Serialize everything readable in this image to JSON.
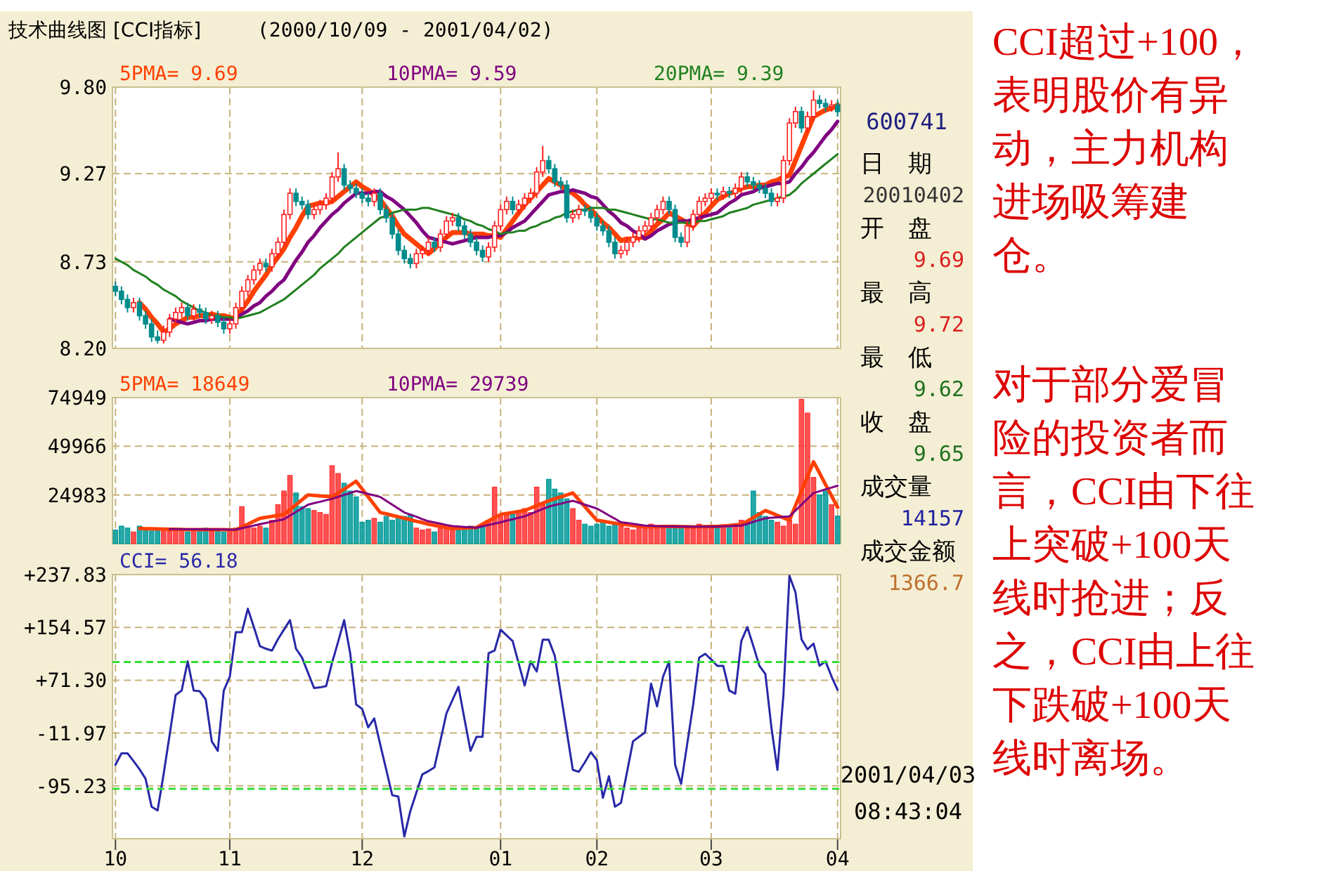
{
  "chart_data": [
    {
      "type": "candlestick",
      "title": "技术曲线图 [CCI指标]",
      "subtitle": "(2000/10/09 - 2001/04/02)",
      "categories": [
        "10",
        null,
        null,
        null,
        null,
        null,
        null,
        null,
        null,
        null,
        null,
        null,
        null,
        null,
        null,
        null,
        null,
        null,
        null,
        "11",
        null,
        null,
        null,
        null,
        null,
        null,
        null,
        null,
        null,
        null,
        null,
        null,
        null,
        null,
        null,
        null,
        null,
        null,
        null,
        null,
        null,
        "12",
        null,
        null,
        null,
        null,
        null,
        null,
        null,
        null,
        null,
        null,
        null,
        null,
        null,
        null,
        null,
        null,
        null,
        null,
        null,
        null,
        null,
        null,
        "01",
        null,
        null,
        null,
        null,
        null,
        null,
        null,
        null,
        null,
        null,
        null,
        null,
        null,
        null,
        null,
        "02",
        null,
        null,
        null,
        null,
        null,
        null,
        null,
        null,
        null,
        null,
        null,
        null,
        null,
        null,
        null,
        null,
        null,
        null,
        "03",
        null,
        null,
        null,
        null,
        null,
        null,
        null,
        null,
        null,
        null,
        null,
        null,
        null,
        null,
        null,
        null,
        null,
        null,
        null,
        null,
        "04"
      ],
      "ohlc": [
        [
          8.58,
          8.61,
          8.52,
          8.55
        ],
        [
          8.55,
          8.58,
          8.47,
          8.5
        ],
        [
          8.5,
          8.53,
          8.42,
          8.45
        ],
        [
          8.45,
          8.51,
          8.42,
          8.48
        ],
        [
          8.48,
          8.51,
          8.37,
          8.4
        ],
        [
          8.4,
          8.43,
          8.32,
          8.35
        ],
        [
          8.35,
          8.38,
          8.24,
          8.27
        ],
        [
          8.27,
          8.31,
          8.23,
          8.25
        ],
        [
          8.25,
          8.34,
          8.23,
          8.3
        ],
        [
          8.3,
          8.41,
          8.27,
          8.38
        ],
        [
          8.38,
          8.45,
          8.35,
          8.42
        ],
        [
          8.42,
          8.48,
          8.39,
          8.45
        ],
        [
          8.45,
          8.48,
          8.37,
          8.4
        ],
        [
          8.4,
          8.47,
          8.37,
          8.44
        ],
        [
          8.44,
          8.47,
          8.39,
          8.42
        ],
        [
          8.42,
          8.45,
          8.35,
          8.38
        ],
        [
          8.38,
          8.43,
          8.35,
          8.4
        ],
        [
          8.4,
          8.43,
          8.33,
          8.36
        ],
        [
          8.36,
          8.39,
          8.29,
          8.32
        ],
        [
          8.32,
          8.38,
          8.29,
          8.35
        ],
        [
          8.35,
          8.48,
          8.32,
          8.45
        ],
        [
          8.45,
          8.58,
          8.42,
          8.55
        ],
        [
          8.55,
          8.65,
          8.52,
          8.62
        ],
        [
          8.62,
          8.71,
          8.59,
          8.68
        ],
        [
          8.68,
          8.75,
          8.65,
          8.72
        ],
        [
          8.72,
          8.75,
          8.67,
          8.7
        ],
        [
          8.7,
          8.81,
          8.67,
          8.78
        ],
        [
          8.78,
          8.88,
          8.75,
          8.85
        ],
        [
          8.85,
          9.05,
          8.82,
          9.02
        ],
        [
          9.02,
          9.18,
          8.99,
          9.15
        ],
        [
          9.15,
          9.18,
          9.07,
          9.1
        ],
        [
          9.1,
          9.13,
          9.05,
          9.08
        ],
        [
          9.08,
          9.11,
          8.99,
          9.02
        ],
        [
          9.02,
          9.08,
          8.99,
          9.05
        ],
        [
          9.05,
          9.11,
          9.02,
          9.08
        ],
        [
          9.08,
          9.15,
          9.05,
          9.12
        ],
        [
          9.12,
          9.28,
          9.09,
          9.25
        ],
        [
          9.25,
          9.4,
          9.22,
          9.3
        ],
        [
          9.3,
          9.33,
          9.17,
          9.2
        ],
        [
          9.2,
          9.23,
          9.15,
          9.18
        ],
        [
          9.18,
          9.21,
          9.12,
          9.15
        ],
        [
          9.15,
          9.18,
          9.09,
          9.12
        ],
        [
          9.12,
          9.15,
          9.07,
          9.1
        ],
        [
          9.1,
          9.18,
          9.07,
          9.15
        ],
        [
          9.15,
          9.18,
          9.02,
          9.05
        ],
        [
          9.05,
          9.08,
          8.97,
          9.0
        ],
        [
          9.0,
          9.03,
          8.87,
          8.9
        ],
        [
          8.9,
          8.93,
          8.77,
          8.8
        ],
        [
          8.8,
          8.83,
          8.72,
          8.75
        ],
        [
          8.75,
          8.78,
          8.69,
          8.72
        ],
        [
          8.72,
          8.81,
          8.69,
          8.78
        ],
        [
          8.78,
          8.83,
          8.75,
          8.8
        ],
        [
          8.8,
          8.88,
          8.77,
          8.85
        ],
        [
          8.85,
          8.88,
          8.79,
          8.82
        ],
        [
          8.82,
          8.93,
          8.79,
          8.9
        ],
        [
          8.9,
          9.01,
          8.87,
          8.98
        ],
        [
          8.98,
          9.03,
          8.95,
          9.0
        ],
        [
          9.0,
          9.03,
          8.92,
          8.95
        ],
        [
          8.95,
          8.98,
          8.87,
          8.9
        ],
        [
          8.9,
          8.93,
          8.82,
          8.85
        ],
        [
          8.85,
          8.88,
          8.77,
          8.8
        ],
        [
          8.8,
          8.83,
          8.73,
          8.76
        ],
        [
          8.76,
          8.85,
          8.73,
          8.82
        ],
        [
          8.82,
          8.98,
          8.79,
          8.95
        ],
        [
          8.95,
          9.08,
          8.92,
          9.05
        ],
        [
          9.05,
          9.13,
          9.02,
          9.1
        ],
        [
          9.1,
          9.13,
          9.02,
          9.05
        ],
        [
          9.05,
          9.11,
          9.02,
          9.08
        ],
        [
          9.08,
          9.15,
          9.05,
          9.12
        ],
        [
          9.12,
          9.18,
          9.09,
          9.15
        ],
        [
          9.15,
          9.31,
          9.12,
          9.28
        ],
        [
          9.28,
          9.44,
          9.25,
          9.35
        ],
        [
          9.35,
          9.38,
          9.27,
          9.3
        ],
        [
          9.3,
          9.33,
          9.19,
          9.22
        ],
        [
          9.22,
          9.25,
          9.17,
          9.2
        ],
        [
          9.2,
          9.23,
          8.97,
          9.0
        ],
        [
          9.0,
          9.05,
          8.97,
          9.02
        ],
        [
          9.02,
          9.08,
          8.99,
          9.05
        ],
        [
          9.05,
          9.08,
          9.01,
          9.04
        ],
        [
          9.04,
          9.07,
          8.97,
          9.0
        ],
        [
          9.0,
          9.03,
          8.92,
          8.95
        ],
        [
          8.95,
          8.98,
          8.89,
          8.92
        ],
        [
          8.92,
          8.95,
          8.82,
          8.85
        ],
        [
          8.85,
          8.88,
          8.75,
          8.78
        ],
        [
          8.78,
          8.83,
          8.75,
          8.8
        ],
        [
          8.8,
          8.88,
          8.77,
          8.85
        ],
        [
          8.85,
          8.91,
          8.82,
          8.88
        ],
        [
          8.88,
          8.95,
          8.85,
          8.92
        ],
        [
          8.92,
          8.98,
          8.89,
          8.95
        ],
        [
          8.95,
          9.03,
          8.92,
          9.0
        ],
        [
          9.0,
          9.08,
          8.97,
          9.05
        ],
        [
          9.05,
          9.13,
          9.02,
          9.1
        ],
        [
          9.1,
          9.13,
          9.02,
          9.05
        ],
        [
          9.05,
          9.08,
          8.85,
          8.88
        ],
        [
          8.88,
          8.91,
          8.82,
          8.85
        ],
        [
          8.85,
          8.98,
          8.82,
          8.95
        ],
        [
          8.95,
          9.05,
          8.92,
          9.02
        ],
        [
          9.02,
          9.13,
          8.99,
          9.1
        ],
        [
          9.1,
          9.15,
          9.07,
          9.12
        ],
        [
          9.12,
          9.18,
          9.09,
          9.15
        ],
        [
          9.15,
          9.18,
          9.11,
          9.14
        ],
        [
          9.14,
          9.19,
          9.11,
          9.16
        ],
        [
          9.16,
          9.19,
          9.12,
          9.15
        ],
        [
          9.15,
          9.21,
          9.12,
          9.18
        ],
        [
          9.18,
          9.28,
          9.15,
          9.25
        ],
        [
          9.25,
          9.28,
          9.19,
          9.22
        ],
        [
          9.22,
          9.25,
          9.17,
          9.2
        ],
        [
          9.2,
          9.23,
          9.15,
          9.18
        ],
        [
          9.18,
          9.21,
          9.12,
          9.15
        ],
        [
          9.15,
          9.18,
          9.07,
          9.1
        ],
        [
          9.1,
          9.15,
          9.07,
          9.12
        ],
        [
          9.12,
          9.38,
          9.09,
          9.35
        ],
        [
          9.35,
          9.61,
          9.32,
          9.58
        ],
        [
          9.58,
          9.68,
          9.55,
          9.65
        ],
        [
          9.65,
          9.68,
          9.52,
          9.55
        ],
        [
          9.55,
          9.65,
          9.52,
          9.62
        ],
        [
          9.62,
          9.78,
          9.59,
          9.72
        ],
        [
          9.72,
          9.75,
          9.67,
          9.7
        ],
        [
          9.7,
          9.73,
          9.65,
          9.68
        ],
        [
          9.68,
          9.72,
          9.65,
          9.69
        ],
        [
          9.69,
          9.72,
          9.62,
          9.65
        ]
      ],
      "series": [
        {
          "type": "line",
          "name": "5PMA= 9.69",
          "color": "#ff4000",
          "values": [
            null,
            null,
            null,
            null,
            8.48,
            8.44,
            8.39,
            8.35,
            8.3,
            8.32,
            8.35,
            8.37,
            8.39,
            8.39,
            8.4,
            8.4,
            8.41,
            8.4,
            8.4,
            8.39,
            8.38,
            8.44,
            8.49,
            8.55,
            8.6,
            8.65,
            8.71,
            8.76,
            8.81,
            8.88,
            8.94,
            9.01,
            9.07,
            9.08,
            9.09,
            9.09,
            9.1,
            9.13,
            9.16,
            9.19,
            9.22,
            9.19,
            9.17,
            9.14,
            9.11,
            9.06,
            9.01,
            8.95,
            8.9,
            8.87,
            8.84,
            8.81,
            8.78,
            8.81,
            8.85,
            8.88,
            8.91,
            8.91,
            8.91,
            8.9,
            8.9,
            8.9,
            8.89,
            8.89,
            8.88,
            8.93,
            8.98,
            9.03,
            9.08,
            9.12,
            9.16,
            9.2,
            9.24,
            9.22,
            9.2,
            9.17,
            9.15,
            9.12,
            9.08,
            9.05,
            9.01,
            8.97,
            8.94,
            8.9,
            8.86,
            8.87,
            8.87,
            8.88,
            8.88,
            8.92,
            8.96,
            8.99,
            9.03,
            9.01,
            8.99,
            8.97,
            8.95,
            8.99,
            9.03,
            9.07,
            9.11,
            9.13,
            9.15,
            9.16,
            9.18,
            9.19,
            9.19,
            9.2,
            9.2,
            9.22,
            9.23,
            9.25,
            9.26,
            9.35,
            9.44,
            9.53,
            9.62,
            9.64,
            9.66,
            9.67,
            9.69
          ]
        },
        {
          "type": "line",
          "name": "10PMA= 9.59",
          "color": "#800080",
          "values": [
            null,
            null,
            null,
            null,
            null,
            null,
            null,
            null,
            null,
            8.38,
            8.37,
            8.36,
            8.35,
            8.36,
            8.37,
            8.37,
            8.38,
            8.38,
            8.38,
            8.38,
            8.38,
            8.41,
            8.43,
            8.46,
            8.48,
            8.52,
            8.55,
            8.59,
            8.62,
            8.68,
            8.74,
            8.79,
            8.85,
            8.89,
            8.94,
            8.98,
            9.02,
            9.05,
            9.09,
            9.12,
            9.15,
            9.15,
            9.15,
            9.16,
            9.16,
            9.13,
            9.11,
            9.08,
            9.05,
            9.01,
            8.97,
            8.92,
            8.88,
            8.87,
            8.86,
            8.85,
            8.84,
            8.85,
            8.86,
            8.87,
            8.88,
            8.88,
            8.88,
            8.89,
            8.89,
            8.91,
            8.94,
            8.96,
            8.98,
            9.02,
            9.06,
            9.1,
            9.14,
            9.15,
            9.16,
            9.16,
            9.17,
            9.16,
            9.15,
            9.13,
            9.12,
            9.08,
            9.04,
            9.01,
            8.97,
            8.95,
            8.92,
            8.9,
            8.87,
            8.89,
            8.92,
            8.94,
            8.96,
            8.97,
            8.98,
            8.98,
            8.99,
            9.0,
            9.01,
            9.02,
            9.03,
            9.06,
            9.09,
            9.11,
            9.14,
            9.15,
            9.16,
            9.18,
            9.19,
            9.2,
            9.21,
            9.21,
            9.22,
            9.27,
            9.31,
            9.36,
            9.4,
            9.45,
            9.5,
            9.54,
            9.59
          ]
        },
        {
          "type": "line",
          "name": "20PMA= 9.39",
          "color": "#208020",
          "values": [
            8.75,
            8.73,
            8.71,
            8.68,
            8.66,
            8.64,
            8.61,
            8.59,
            8.56,
            8.54,
            8.52,
            8.49,
            8.47,
            8.45,
            8.43,
            8.42,
            8.4,
            8.4,
            8.39,
            8.39,
            8.38,
            8.39,
            8.4,
            8.41,
            8.42,
            8.44,
            8.46,
            8.48,
            8.5,
            8.53,
            8.56,
            8.59,
            8.62,
            8.65,
            8.69,
            8.72,
            8.75,
            8.78,
            8.82,
            8.85,
            8.88,
            8.91,
            8.94,
            8.97,
            9.0,
            9.01,
            9.03,
            9.04,
            9.05,
            9.05,
            9.05,
            9.06,
            9.06,
            9.05,
            9.04,
            9.03,
            9.02,
            9.01,
            8.99,
            8.98,
            8.96,
            8.95,
            8.93,
            8.92,
            8.9,
            8.91,
            8.91,
            8.92,
            8.92,
            8.94,
            8.95,
            8.97,
            8.98,
            9.0,
            9.01,
            9.03,
            9.04,
            9.05,
            9.05,
            9.06,
            9.06,
            9.06,
            9.05,
            9.05,
            9.04,
            9.03,
            9.02,
            9.01,
            9.0,
            8.99,
            8.99,
            8.98,
            8.97,
            8.97,
            8.97,
            8.97,
            8.97,
            8.98,
            8.98,
            8.99,
            9.0,
            9.01,
            9.03,
            9.04,
            9.05,
            9.06,
            9.08,
            9.09,
            9.1,
            9.11,
            9.12,
            9.13,
            9.14,
            9.17,
            9.21,
            9.24,
            9.27,
            9.3,
            9.33,
            9.36,
            9.39
          ]
        }
      ],
      "ylim": [
        8.2,
        9.8
      ],
      "yticks": [
        {
          "value": 8.2,
          "label": "8.20"
        },
        {
          "value": 8.73,
          "label": "8.73"
        },
        {
          "value": 9.27,
          "label": "9.27"
        },
        {
          "value": 9.8,
          "label": "9.80"
        }
      ],
      "tick_labels": "y",
      "grid": true,
      "legend": "top"
    },
    {
      "type": "bar",
      "categories": [
        "10",
        null,
        null,
        null,
        null,
        null,
        null,
        null,
        null,
        null,
        null,
        null,
        null,
        null,
        null,
        null,
        null,
        null,
        null,
        "11",
        null,
        null,
        null,
        null,
        null,
        null,
        null,
        null,
        null,
        null,
        null,
        null,
        null,
        null,
        null,
        null,
        null,
        null,
        null,
        null,
        null,
        "12",
        null,
        null,
        null,
        null,
        null,
        null,
        null,
        null,
        null,
        null,
        null,
        null,
        null,
        null,
        null,
        null,
        null,
        null,
        null,
        null,
        null,
        null,
        "01",
        null,
        null,
        null,
        null,
        null,
        null,
        null,
        null,
        null,
        null,
        null,
        null,
        null,
        null,
        null,
        "02",
        null,
        null,
        null,
        null,
        null,
        null,
        null,
        null,
        null,
        null,
        null,
        null,
        null,
        null,
        null,
        null,
        null,
        null,
        "03",
        null,
        null,
        null,
        null,
        null,
        null,
        null,
        null,
        null,
        null,
        null,
        null,
        null,
        null,
        null,
        null,
        null,
        null,
        null,
        null,
        "04"
      ],
      "values": [
        7000,
        9000,
        8000,
        6000,
        9000,
        7000,
        6500,
        8000,
        7000,
        6500,
        7500,
        7000,
        6000,
        7500,
        7000,
        8000,
        6500,
        7000,
        6000,
        7000,
        8000,
        19000,
        9000,
        8000,
        9000,
        8000,
        12000,
        20000,
        27000,
        35000,
        26000,
        19000,
        18000,
        17000,
        16000,
        15000,
        40000,
        36000,
        31000,
        27000,
        24000,
        11000,
        12000,
        13000,
        11000,
        14000,
        12000,
        13000,
        14000,
        15000,
        8000,
        7000,
        7500,
        6000,
        8000,
        9000,
        8000,
        7000,
        8000,
        9000,
        8500,
        9000,
        12000,
        29000,
        14000,
        16000,
        15000,
        17000,
        18000,
        16000,
        29000,
        20000,
        33000,
        28000,
        26000,
        23000,
        18000,
        12000,
        10000,
        9000,
        10000,
        11000,
        9000,
        10000,
        9000,
        8000,
        7000,
        9000,
        8000,
        10000,
        9000,
        8000,
        9000,
        8000,
        9000,
        8000,
        9000,
        10000,
        9000,
        8000,
        9000,
        8000,
        9000,
        10000,
        12000,
        11000,
        27000,
        16000,
        14000,
        12000,
        11000,
        9000,
        12000,
        10000,
        74000,
        67000,
        34000,
        25000,
        27000,
        20000,
        14157
      ],
      "colors": [
        "#009999",
        "#009999",
        "#009999",
        "#ff3333",
        "#009999",
        "#009999",
        "#009999",
        "#009999",
        "#ff3333",
        "#ff3333",
        "#ff3333",
        "#ff3333",
        "#009999",
        "#ff3333",
        "#009999",
        "#009999",
        "#ff3333",
        "#009999",
        "#009999",
        "#ff3333",
        "#ff3333",
        "#ff3333",
        "#ff3333",
        "#ff3333",
        "#ff3333",
        "#009999",
        "#ff3333",
        "#ff3333",
        "#ff3333",
        "#ff3333",
        "#009999",
        "#009999",
        "#009999",
        "#ff3333",
        "#ff3333",
        "#ff3333",
        "#ff3333",
        "#ff3333",
        "#009999",
        "#009999",
        "#009999",
        "#009999",
        "#009999",
        "#ff3333",
        "#009999",
        "#009999",
        "#009999",
        "#009999",
        "#009999",
        "#009999",
        "#ff3333",
        "#ff3333",
        "#ff3333",
        "#009999",
        "#ff3333",
        "#ff3333",
        "#ff3333",
        "#009999",
        "#009999",
        "#009999",
        "#009999",
        "#009999",
        "#ff3333",
        "#ff3333",
        "#ff3333",
        "#ff3333",
        "#009999",
        "#ff3333",
        "#ff3333",
        "#ff3333",
        "#ff3333",
        "#ff3333",
        "#009999",
        "#009999",
        "#009999",
        "#009999",
        "#ff3333",
        "#ff3333",
        "#009999",
        "#009999",
        "#009999",
        "#009999",
        "#009999",
        "#009999",
        "#ff3333",
        "#ff3333",
        "#ff3333",
        "#ff3333",
        "#ff3333",
        "#ff3333",
        "#ff3333",
        "#ff3333",
        "#009999",
        "#009999",
        "#009999",
        "#ff3333",
        "#ff3333",
        "#ff3333",
        "#ff3333",
        "#ff3333",
        "#009999",
        "#ff3333",
        "#009999",
        "#ff3333",
        "#ff3333",
        "#009999",
        "#009999",
        "#009999",
        "#009999",
        "#009999",
        "#ff3333",
        "#ff3333",
        "#ff3333",
        "#ff3333",
        "#ff3333",
        "#ff3333",
        "#ff3333",
        "#009999",
        "#009999",
        "#ff3333",
        "#009999"
      ],
      "series": [
        {
          "type": "line",
          "name": "5PMA= 18649",
          "color": "#ff4000",
          "values": [
            null,
            null,
            null,
            null,
            7800,
            7700,
            7700,
            7600,
            7500,
            7400,
            7400,
            7300,
            7200,
            7200,
            7200,
            7200,
            7200,
            7200,
            7200,
            7100,
            7100,
            8600,
            10000,
            11500,
            13000,
            13500,
            14000,
            14500,
            15000,
            17500,
            20000,
            22500,
            25000,
            24800,
            24500,
            24300,
            24000,
            26000,
            28000,
            30000,
            32000,
            28000,
            24000,
            20000,
            16000,
            15300,
            14500,
            13800,
            13000,
            12300,
            11500,
            10800,
            10000,
            9400,
            8900,
            8300,
            7700,
            7900,
            8000,
            8200,
            8300,
            10000,
            11700,
            13300,
            15000,
            15500,
            16000,
            16500,
            17000,
            18300,
            19500,
            20800,
            22000,
            23000,
            24000,
            25000,
            26000,
            22500,
            19000,
            15500,
            12000,
            11500,
            11000,
            10500,
            10000,
            9700,
            9300,
            9000,
            8600,
            8700,
            8700,
            8800,
            8800,
            8800,
            8700,
            8700,
            8600,
            8700,
            8700,
            8800,
            8800,
            9100,
            9300,
            9600,
            9800,
            11600,
            13400,
            15200,
            17000,
            15800,
            14500,
            13300,
            12000,
            19500,
            27000,
            34500,
            42000,
            36200,
            30300,
            24500,
            18649
          ]
        },
        {
          "type": "line",
          "name": "10PMA= 29739",
          "color": "#800080",
          "values": [
            null,
            null,
            null,
            null,
            null,
            null,
            null,
            null,
            null,
            7500,
            7500,
            7400,
            7400,
            7400,
            7400,
            7300,
            7300,
            7300,
            7300,
            7200,
            7200,
            7900,
            8600,
            9300,
            10000,
            10600,
            11300,
            11900,
            12500,
            14400,
            16300,
            18100,
            20000,
            20800,
            21500,
            22300,
            23000,
            24000,
            25000,
            26000,
            27000,
            26300,
            25500,
            24800,
            24000,
            22000,
            20000,
            18000,
            16000,
            14900,
            13800,
            12600,
            11500,
            10900,
            10300,
            9600,
            9000,
            8800,
            8600,
            8400,
            8200,
            8900,
            9600,
            10300,
            11000,
            11800,
            12500,
            13300,
            14000,
            15300,
            16500,
            17800,
            19000,
            19800,
            20500,
            21300,
            22000,
            21000,
            20000,
            19000,
            18000,
            16300,
            14500,
            12800,
            11000,
            10600,
            10200,
            9700,
            9300,
            9200,
            9000,
            8900,
            8800,
            8800,
            8800,
            8700,
            8700,
            8700,
            8700,
            8700,
            8700,
            8900,
            9000,
            9200,
            9300,
            10200,
            11200,
            12100,
            13000,
            13300,
            13500,
            13800,
            14000,
            17000,
            20000,
            23000,
            26000,
            26900,
            27900,
            28800,
            29739
          ]
        }
      ],
      "ylim": [
        0,
        74949
      ],
      "yticks": [
        24983,
        49966,
        74949
      ],
      "tick_labels": "y",
      "grid": true,
      "legend": "top"
    },
    {
      "type": "line",
      "categories": [
        "10",
        null,
        null,
        null,
        null,
        null,
        null,
        null,
        null,
        null,
        null,
        null,
        null,
        null,
        null,
        null,
        null,
        null,
        null,
        "11",
        null,
        null,
        null,
        null,
        null,
        null,
        null,
        null,
        null,
        null,
        null,
        null,
        null,
        null,
        null,
        null,
        null,
        null,
        null,
        null,
        null,
        "12",
        null,
        null,
        null,
        null,
        null,
        null,
        null,
        null,
        null,
        null,
        null,
        null,
        null,
        null,
        null,
        null,
        null,
        null,
        null,
        null,
        null,
        null,
        "01",
        null,
        null,
        null,
        null,
        null,
        null,
        null,
        null,
        null,
        null,
        null,
        null,
        null,
        null,
        null,
        "02",
        null,
        null,
        null,
        null,
        null,
        null,
        null,
        null,
        null,
        null,
        null,
        null,
        null,
        null,
        null,
        null,
        null,
        null,
        "03",
        null,
        null,
        null,
        null,
        null,
        null,
        null,
        null,
        null,
        null,
        null,
        null,
        null,
        null,
        null,
        null,
        null,
        null,
        null,
        null,
        "04"
      ],
      "series": [
        {
          "name": "CCI= 56.18",
          "color": "#2828a8",
          "values": [
            -62,
            -44,
            -44,
            -56,
            -69,
            -84,
            -128,
            -134,
            -77,
            -15,
            48,
            55,
            101,
            55,
            54,
            41,
            -25,
            -40,
            55,
            77,
            147,
            147,
            184,
            155,
            125,
            121,
            118,
            136,
            151,
            166,
            121,
            107,
            83,
            59,
            60,
            62,
            99,
            132,
            166,
            114,
            33,
            26,
            -3,
            11,
            -30,
            -70,
            -110,
            -112,
            -175,
            -135,
            -106,
            -77,
            -72,
            -66,
            -24,
            19,
            40,
            61,
            10,
            -40,
            -18,
            -18,
            114,
            118,
            151,
            142,
            133,
            98,
            63,
            101,
            85,
            135,
            135,
            110,
            50,
            -10,
            -70,
            -73,
            -58,
            -42,
            -55,
            -114,
            -80,
            -128,
            -122,
            -74,
            -25,
            -18,
            -11,
            66,
            30,
            77,
            101,
            -62,
            -92,
            -30,
            33,
            107,
            113,
            104,
            94,
            94,
            55,
            50,
            133,
            155,
            125,
            94,
            81,
            -3,
            -70,
            48,
            236,
            210,
            136,
            120,
            129,
            94,
            101,
            77,
            56.18
          ]
        }
      ],
      "ref_lines": [
        {
          "axis": "y",
          "value": 100,
          "color": "#33dd33",
          "line_style": "dashed"
        },
        {
          "axis": "y",
          "value": -100,
          "color": "#33dd33",
          "line_style": "dashed"
        }
      ],
      "ylim": [
        -178.5,
        237.83
      ],
      "yticks": [
        {
          "value": -95.23,
          "label": "-95.23"
        },
        {
          "value": -11.97,
          "label": "-11.97"
        },
        {
          "value": 71.3,
          "label": "+71.30"
        },
        {
          "value": 154.57,
          "label": "+154.57"
        },
        {
          "value": 237.83,
          "label": "+237.83"
        }
      ],
      "grid": true,
      "legend": "top",
      "annotations": [
        "CCI超过+100，表明股价有异动，主力机构进场吸筹建仓。",
        "对于部分爱冒险的投资者而言，CCI由下往上突破+100天线时抢进；反之，CCI由上往下跌破+100天线时离场。"
      ]
    },
    {
      "type": "other",
      "title": "600741",
      "annotations": [
        "日　期",
        "20010402",
        "开　盘",
        "9.69",
        "最　高",
        "9.72",
        "最　低",
        "9.62",
        "收　盘",
        "9.65",
        "成交量",
        "14157",
        "成交金额",
        "1366.7",
        "2001/04/03",
        "08:43:04"
      ],
      "colors": [
        "#000000",
        "#333333",
        "#000000",
        "#dd2020",
        "#000000",
        "#dd2020",
        "#000000",
        "#207020",
        "#000000",
        "#207020",
        "#000000",
        "#2020a0",
        "#000000",
        "#c07030",
        "#000000",
        "#000000"
      ]
    }
  ]
}
